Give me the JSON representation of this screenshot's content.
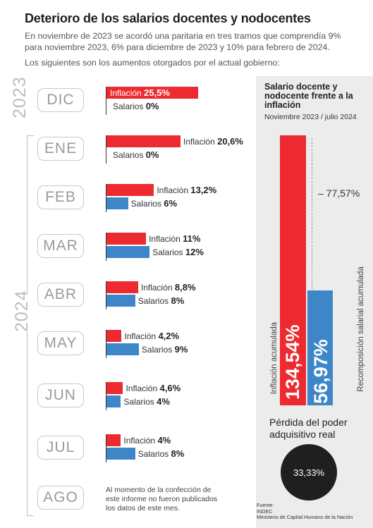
{
  "header": {
    "title": "Deterioro de los salarios docentes y nodocentes",
    "intro": "En noviembre de 2023 se acordó una paritaria en tres tramos que comprendía 9% para noviembre 2023, 6% para diciembre de 2023 y 10% para febrero de 2024.",
    "intro2": "Los siguientes son los aumentos otorgados por el actual gobierno:"
  },
  "years": {
    "y2023": "2023",
    "y2024": "2024"
  },
  "labels": {
    "inflation": "Inflación",
    "salary": "Salarios"
  },
  "months": [
    {
      "name": "DIC",
      "inflation": 25.5,
      "salary": 0,
      "inflation_text": "25,5%",
      "salary_text": "0%"
    },
    {
      "name": "ENE",
      "inflation": 20.6,
      "salary": 0,
      "inflation_text": "20,6%",
      "salary_text": "0%"
    },
    {
      "name": "FEB",
      "inflation": 13.2,
      "salary": 6,
      "inflation_text": "13,2%",
      "salary_text": "6%"
    },
    {
      "name": "MAR",
      "inflation": 11,
      "salary": 12,
      "inflation_text": "11%",
      "salary_text": "12%"
    },
    {
      "name": "ABR",
      "inflation": 8.8,
      "salary": 8,
      "inflation_text": "8,8%",
      "salary_text": "8%"
    },
    {
      "name": "MAY",
      "inflation": 4.2,
      "salary": 9,
      "inflation_text": "4,2%",
      "salary_text": "9%"
    },
    {
      "name": "JUN",
      "inflation": 4.6,
      "salary": 4,
      "inflation_text": "4,6%",
      "salary_text": "4%"
    },
    {
      "name": "JUL",
      "inflation": 4,
      "salary": 8,
      "inflation_text": "4%",
      "salary_text": "8%"
    },
    {
      "name": "AGO"
    }
  ],
  "note": "Al momento de la confección de este informe no fueron publicados los datos de este mes.",
  "panel": {
    "title": "Salario docente y nodocente frente a la inflación",
    "subtitle": "Noviembre 2023 / julio 2024",
    "inflation_label": "Inflación acumulada",
    "inflation_value": "134,54%",
    "salary_label": "Recomposición salarial acumulada",
    "salary_value": "56,97%",
    "difference": "– 77,57%",
    "loss_title": "Pérdida del poder adquisitivo real",
    "loss_value": "33,33%",
    "source_label": "Fuente:",
    "source_1": "INDEC",
    "source_2": "Ministerio de Capital Humano de la Nación"
  },
  "colors": {
    "inflation": "#ec2a2f",
    "salary": "#3d87c9",
    "panel_bg": "#ececec"
  },
  "chart_data": [
    {
      "type": "bar",
      "orientation": "horizontal",
      "categories": [
        "DIC",
        "ENE",
        "FEB",
        "MAR",
        "ABR",
        "MAY",
        "JUN",
        "JUL",
        "AGO"
      ],
      "series": [
        {
          "name": "Inflación",
          "values": [
            25.5,
            20.6,
            13.2,
            11,
            8.8,
            4.2,
            4.6,
            4,
            null
          ]
        },
        {
          "name": "Salarios",
          "values": [
            0,
            0,
            6,
            12,
            8,
            9,
            4,
            8,
            null
          ]
        }
      ]
    },
    {
      "type": "bar",
      "title": "Salario docente y nodocente frente a la inflación",
      "categories": [
        "Inflación acumulada",
        "Recomposición salarial acumulada"
      ],
      "values": [
        134.54,
        56.97
      ],
      "difference": -77.57
    }
  ]
}
